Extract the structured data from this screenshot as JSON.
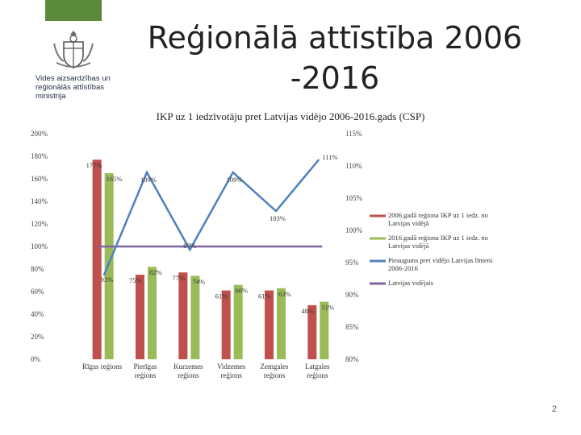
{
  "slide": {
    "title": "Reģionālā attīstība 2006\n-2016",
    "logo_text": "Vides aizsardzības un\nreģionālās attīstības\nministrija",
    "page_number": "2"
  },
  "colors": {
    "bar2006": "#c0504d",
    "bar2016": "#9bbb59",
    "growth": "#4f81bd",
    "avg": "#8064a2",
    "brand_green": "#5b8a3a"
  },
  "chart_data": {
    "type": "bar",
    "title": "IKP uz 1 iedzīvotāju pret Latvijas vidējo 2006-2016.gads (CSP)",
    "categories": [
      "Rīgas reģions",
      "Pierīgas reģions",
      "Kurzemes reģions",
      "Vidzemes reģions",
      "Zemgales reģions",
      "Latgales reģions"
    ],
    "ylim": [
      0,
      200
    ],
    "y_ticks": [
      0,
      20,
      40,
      60,
      80,
      100,
      120,
      140,
      160,
      180,
      200
    ],
    "y_tick_labels": [
      "0%",
      "20%",
      "40%",
      "60%",
      "80%",
      "100%",
      "120%",
      "140%",
      "160%",
      "180%",
      "200%"
    ],
    "y2lim": [
      80,
      115
    ],
    "y2_ticks": [
      80,
      85,
      90,
      95,
      100,
      105,
      110,
      115
    ],
    "y2_tick_labels": [
      "80%",
      "85%",
      "90%",
      "95%",
      "100%",
      "105%",
      "110%",
      "115%"
    ],
    "series": [
      {
        "name": "2006.gadā reģiona IKP uz 1 iedz. no Latvijas vidējā",
        "kind": "bar",
        "axis": "left",
        "values": [
          177,
          75,
          77,
          61,
          61,
          48
        ],
        "labels": [
          "177%",
          "75%",
          "77%",
          "61%",
          "61%",
          "48%"
        ]
      },
      {
        "name": "2016.gadā reģiona IKP uz 1 iedz. no Latvijas vidējā",
        "kind": "bar",
        "axis": "left",
        "values": [
          165,
          82,
          74,
          66,
          63,
          51
        ],
        "labels": [
          "165%",
          "82%",
          "74%",
          "66%",
          "63%",
          "51%"
        ]
      },
      {
        "name": "Pieaugums pret vidējo Latvijas līmeni 2006-2016",
        "kind": "line",
        "axis": "right",
        "values": [
          93,
          109,
          97,
          109,
          103,
          111
        ],
        "labels": [
          "93%",
          "109%",
          "97%",
          "109%",
          "103%",
          "111%"
        ]
      },
      {
        "name": "Latvijas vidējais",
        "kind": "line",
        "axis": "left",
        "values": [
          100,
          100,
          100,
          100,
          100,
          100
        ]
      }
    ],
    "legend_position": "right",
    "grid": false
  }
}
